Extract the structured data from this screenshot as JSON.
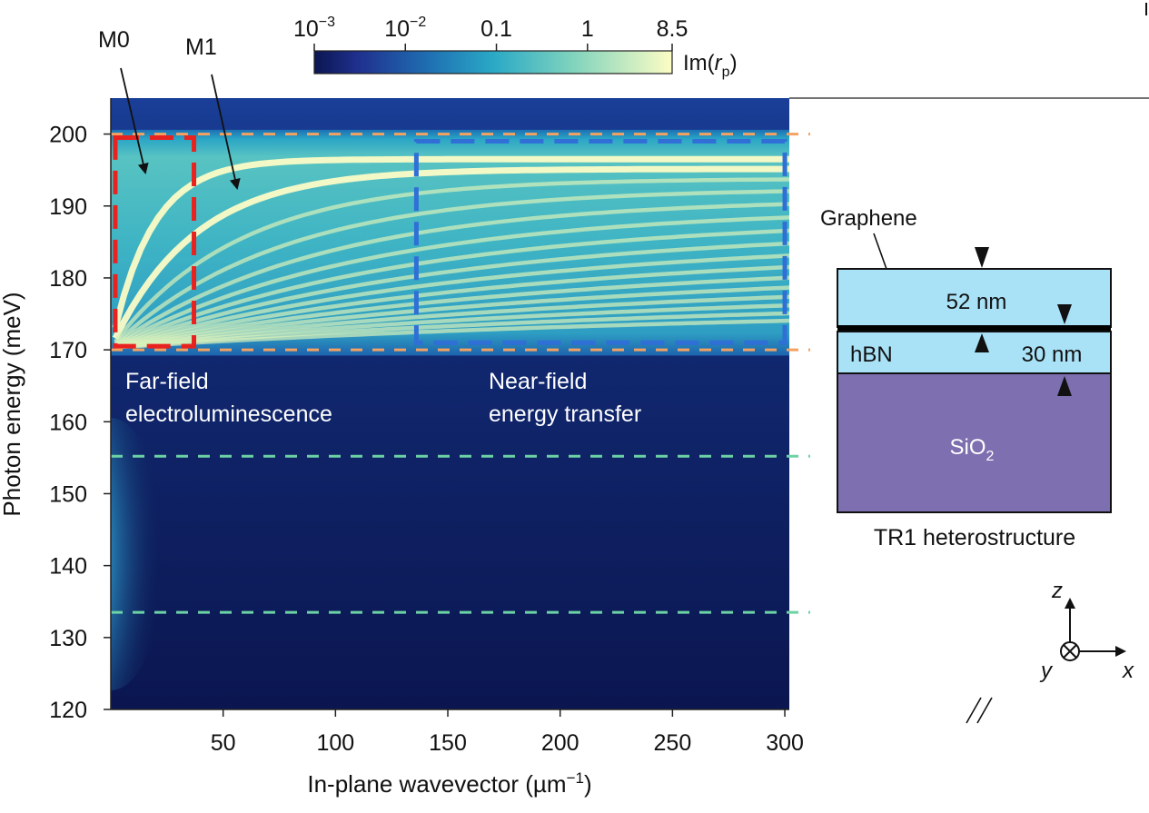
{
  "chart_data": {
    "type": "heatmap",
    "title": "",
    "xlabel_parts": {
      "pre": "In-plane wavevector (",
      "unit": "µm",
      "exp": "−1",
      "post": ")"
    },
    "ylabel": "Photon energy (meV)",
    "xlim": [
      0,
      302
    ],
    "ylim": [
      120,
      205
    ],
    "x_ticks": [
      50,
      100,
      150,
      200,
      250,
      300
    ],
    "y_ticks": [
      120,
      130,
      140,
      150,
      160,
      170,
      180,
      190,
      200
    ],
    "colorbar": {
      "label_pre": "Im(",
      "label_var": "r",
      "label_sub": "p",
      "label_post": ")",
      "scale": "log",
      "range": [
        0.001,
        8.5
      ],
      "ticks": [
        {
          "value": 0.001,
          "base": "10",
          "exp": "−3"
        },
        {
          "value": 0.01,
          "base": "10",
          "exp": "−2"
        },
        {
          "value": 0.1,
          "text": "0.1"
        },
        {
          "value": 1,
          "text": "1"
        },
        {
          "value": 8.5,
          "text": "8.5"
        }
      ],
      "colors": [
        "#0b1650",
        "#1f2f8d",
        "#1f6fb2",
        "#2aa9c6",
        "#7fd3bd",
        "#fdfdc4"
      ]
    },
    "hyperbolic_band_meV": [
      170,
      200
    ],
    "modes": [
      {
        "label": "M0",
        "type": "arrow-annotation"
      },
      {
        "label": "M1",
        "type": "arrow-annotation"
      }
    ],
    "reference_lines": [
      {
        "y": 200,
        "color": "#f4a261",
        "style": "dashed"
      },
      {
        "y": 170,
        "color": "#f4a261",
        "style": "dashed"
      },
      {
        "y": 155.2,
        "color": "#6cd3a5",
        "style": "dashed"
      },
      {
        "y": 133.5,
        "color": "#6cd3a5",
        "style": "dashed"
      }
    ],
    "regions": [
      {
        "name": "far-field",
        "x_range": [
          2,
          37
        ],
        "y_range": [
          170.5,
          199.5
        ],
        "color": "#e8231f",
        "label_lines": [
          "Far-field",
          "electroluminescence"
        ]
      },
      {
        "name": "near-field",
        "x_range": [
          136,
          300
        ],
        "y_range": [
          171,
          199
        ],
        "color": "#2f6fd6",
        "label_lines": [
          "Near-field",
          "energy transfer"
        ]
      }
    ]
  },
  "diagram": {
    "title": "TR1 heterostructure",
    "graphene_label": "Graphene",
    "top_layer_thickness": "52 nm",
    "bottom_label": "hBN",
    "bottom_layer_thickness": "30 nm",
    "substrate_base": "SiO",
    "substrate_sub": "2",
    "colors": {
      "hbn": "#a9e2f7",
      "substrate": "#7d6fb0",
      "graphene": "#000000"
    },
    "axes": {
      "z": "z",
      "x": "x",
      "y": "y"
    }
  }
}
